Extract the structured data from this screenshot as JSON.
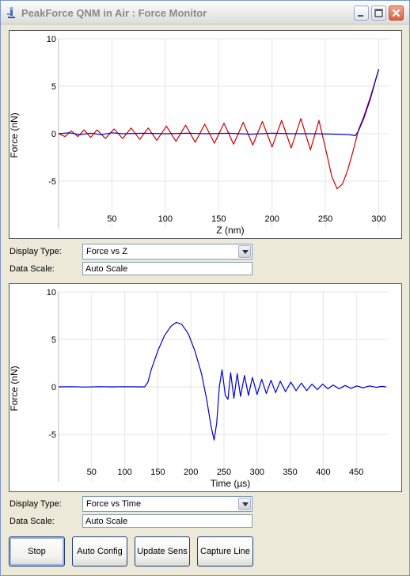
{
  "window": {
    "title": "PeakForce QNM in Air : Force Monitor",
    "controls": [
      "minimize-icon",
      "maximize-icon",
      "close-icon"
    ]
  },
  "plot1": {
    "display_type_label": "Display Type:",
    "display_type_value": "Force vs Z",
    "data_scale_label": "Data Scale:",
    "data_scale_value": "Auto Scale"
  },
  "plot2": {
    "display_type_label": "Display Type:",
    "display_type_value": "Force vs Time",
    "data_scale_label": "Data Scale:",
    "data_scale_value": "Auto Scale"
  },
  "buttons": {
    "stop": "Stop",
    "auto_config": "Auto Config",
    "update_sens": "Update Sens",
    "capture_line": "Capture Line"
  },
  "chart_data": [
    {
      "type": "line",
      "xlabel": "Z (nm)",
      "ylabel": "Force (nN)",
      "xlim": [
        0,
        310
      ],
      "ylim": [
        -10,
        10
      ],
      "xticks": [
        50,
        100,
        150,
        200,
        250,
        300
      ],
      "yticks": [
        -5,
        0,
        5,
        10
      ],
      "grid": true,
      "series": [
        {
          "color": "#cc0000",
          "points": [
            [
              0,
              0
            ],
            [
              6,
              -0.3
            ],
            [
              12,
              0.3
            ],
            [
              18,
              -0.3
            ],
            [
              24,
              0.4
            ],
            [
              30,
              -0.4
            ],
            [
              36,
              0.4
            ],
            [
              44,
              -0.5
            ],
            [
              52,
              0.5
            ],
            [
              60,
              -0.5
            ],
            [
              68,
              0.6
            ],
            [
              76,
              -0.6
            ],
            [
              84,
              0.6
            ],
            [
              92,
              -0.7
            ],
            [
              101,
              0.8
            ],
            [
              110,
              -0.8
            ],
            [
              119,
              0.9
            ],
            [
              128,
              -0.9
            ],
            [
              137,
              1.0
            ],
            [
              146,
              -1.0
            ],
            [
              155,
              1.1
            ],
            [
              164,
              -1.1
            ],
            [
              173,
              1.2
            ],
            [
              182,
              -1.2
            ],
            [
              191,
              1.3
            ],
            [
              200,
              -1.4
            ],
            [
              209,
              1.4
            ],
            [
              218,
              -1.5
            ],
            [
              227,
              1.6
            ],
            [
              236,
              -1.7
            ],
            [
              244,
              1.4
            ],
            [
              250,
              -1.5
            ],
            [
              256,
              -4.5
            ],
            [
              261,
              -5.8
            ],
            [
              266,
              -5.3
            ],
            [
              271,
              -3.8
            ],
            [
              276,
              -1.8
            ],
            [
              281,
              0.4
            ],
            [
              286,
              1.8
            ],
            [
              292,
              3.8
            ],
            [
              300,
              6.8
            ]
          ]
        },
        {
          "color": "#0000cc",
          "points": [
            [
              0,
              0
            ],
            [
              10,
              0.1
            ],
            [
              20,
              -0.1
            ],
            [
              30,
              0.05
            ],
            [
              40,
              -0.1
            ],
            [
              50,
              0.1
            ],
            [
              60,
              0
            ],
            [
              80,
              0.05
            ],
            [
              100,
              0
            ],
            [
              120,
              0.05
            ],
            [
              140,
              0
            ],
            [
              160,
              0.05
            ],
            [
              180,
              -0.05
            ],
            [
              200,
              0.05
            ],
            [
              220,
              0
            ],
            [
              240,
              0
            ],
            [
              260,
              -0.05
            ],
            [
              272,
              -0.1
            ],
            [
              278,
              -0.2
            ],
            [
              281,
              0.3
            ],
            [
              286,
              1.6
            ],
            [
              292,
              3.6
            ],
            [
              300,
              6.8
            ]
          ]
        }
      ]
    },
    {
      "type": "line",
      "xlabel": "Time (µs)",
      "ylabel": "Force (nN)",
      "xlim": [
        0,
        500
      ],
      "ylim": [
        -10,
        10
      ],
      "xticks": [
        50,
        100,
        150,
        200,
        250,
        300,
        350,
        400,
        450
      ],
      "yticks": [
        -5,
        0,
        5,
        10
      ],
      "grid": true,
      "series": [
        {
          "color": "#0000cc",
          "points": [
            [
              0,
              0
            ],
            [
              20,
              0.02
            ],
            [
              40,
              -0.02
            ],
            [
              60,
              0.02
            ],
            [
              80,
              0
            ],
            [
              100,
              0.02
            ],
            [
              120,
              0
            ],
            [
              130,
              0
            ],
            [
              135,
              0.5
            ],
            [
              140,
              1.8
            ],
            [
              150,
              3.8
            ],
            [
              160,
              5.4
            ],
            [
              170,
              6.4
            ],
            [
              178,
              6.8
            ],
            [
              186,
              6.6
            ],
            [
              196,
              5.6
            ],
            [
              206,
              3.8
            ],
            [
              216,
              1.4
            ],
            [
              224,
              -1.4
            ],
            [
              230,
              -4.0
            ],
            [
              235,
              -5.6
            ],
            [
              239,
              -3.8
            ],
            [
              243,
              0
            ],
            [
              247,
              1.8
            ],
            [
              252,
              -0.9
            ],
            [
              256,
              -1.3
            ],
            [
              260,
              1.5
            ],
            [
              265,
              -1.2
            ],
            [
              270,
              1.4
            ],
            [
              275,
              -1.0
            ],
            [
              281,
              1.2
            ],
            [
              287,
              -0.9
            ],
            [
              293,
              1.0
            ],
            [
              300,
              -0.8
            ],
            [
              307,
              0.8
            ],
            [
              314,
              -0.7
            ],
            [
              321,
              0.7
            ],
            [
              328,
              -0.6
            ],
            [
              335,
              0.6
            ],
            [
              343,
              -0.5
            ],
            [
              351,
              0.5
            ],
            [
              359,
              -0.4
            ],
            [
              367,
              0.4
            ],
            [
              375,
              -0.4
            ],
            [
              383,
              0.3
            ],
            [
              391,
              -0.3
            ],
            [
              399,
              0.3
            ],
            [
              407,
              -0.2
            ],
            [
              415,
              0.2
            ],
            [
              424,
              -0.2
            ],
            [
              433,
              0.15
            ],
            [
              442,
              -0.15
            ],
            [
              451,
              0.1
            ],
            [
              460,
              -0.1
            ],
            [
              470,
              0.1
            ],
            [
              480,
              -0.05
            ],
            [
              488,
              0.05
            ],
            [
              495,
              0
            ]
          ]
        }
      ]
    }
  ]
}
